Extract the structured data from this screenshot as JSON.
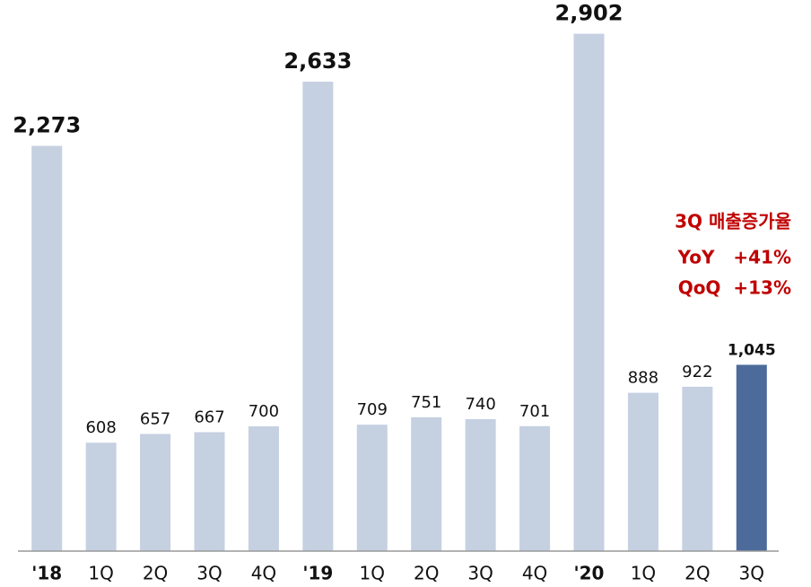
{
  "chart_data": {
    "type": "bar",
    "categories": [
      "'18",
      "1Q",
      "2Q",
      "3Q",
      "4Q",
      "'19",
      "1Q",
      "2Q",
      "3Q",
      "4Q",
      "'20",
      "1Q",
      "2Q",
      "3Q"
    ],
    "values": [
      2273,
      608,
      657,
      667,
      700,
      2633,
      709,
      751,
      740,
      701,
      2902,
      888,
      922,
      1045
    ],
    "value_labels": [
      "2,273",
      "608",
      "657",
      "667",
      "700",
      "2,633",
      "709",
      "751",
      "740",
      "701",
      "2,902",
      "888",
      "922",
      "1,045"
    ],
    "colors": [
      "#c5d0e1",
      "#c5d0e1",
      "#c5d0e1",
      "#c5d0e1",
      "#c5d0e1",
      "#c5d0e1",
      "#c5d0e1",
      "#c5d0e1",
      "#c5d0e1",
      "#c5d0e1",
      "#c5d0e1",
      "#c5d0e1",
      "#c5d0e1",
      "#4c6b9b"
    ],
    "ylim": [
      0,
      2900
    ],
    "annotations": [
      "3Q 매출증가율",
      "YoY   +41%",
      "QoQ  +13%"
    ],
    "annotation_color": "#c00000"
  }
}
